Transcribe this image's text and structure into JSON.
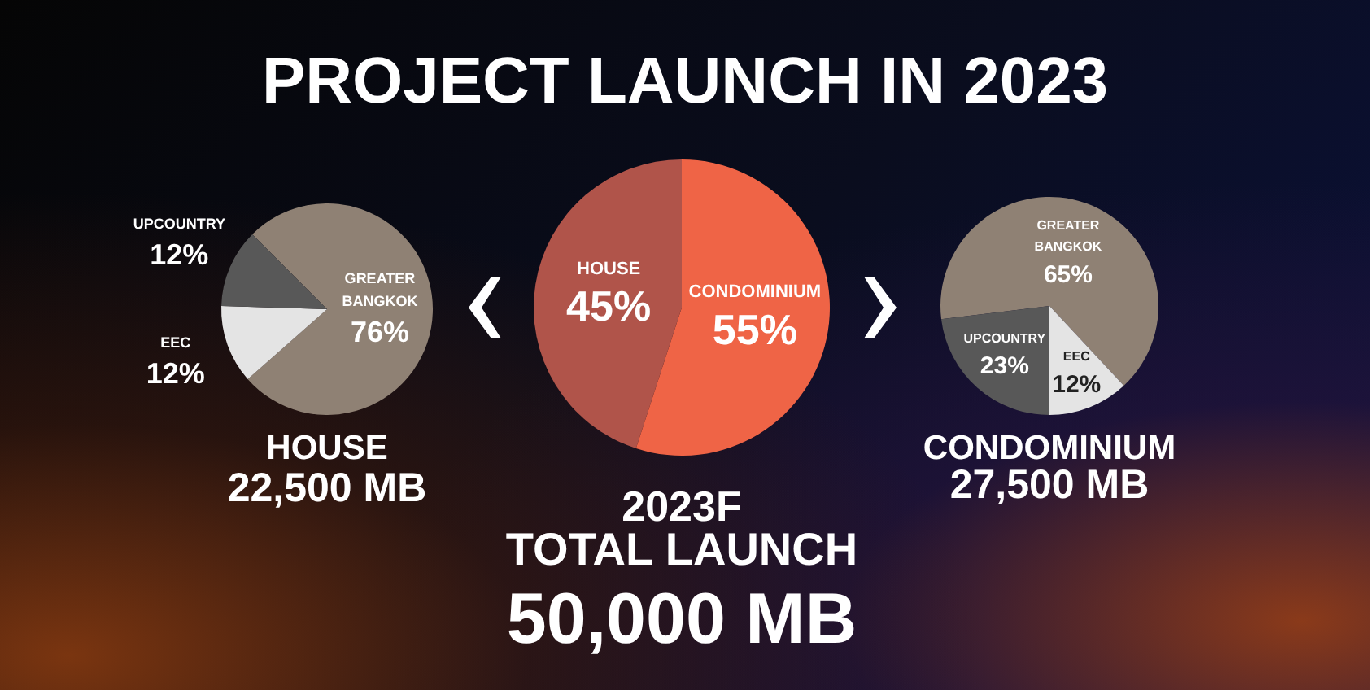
{
  "chart_data": [
    {
      "type": "pie",
      "title": "HOUSE",
      "subtitle": "22,500 MB",
      "categories": [
        "GREATER BANGKOK",
        "EEC",
        "UPCOUNTRY"
      ],
      "values": [
        76,
        12,
        12
      ],
      "colors": [
        "#8f8174",
        "#e4e4e4",
        "#585858"
      ],
      "value_labels": [
        "76%",
        "12%",
        "12%"
      ]
    },
    {
      "type": "pie",
      "title": "PROJECT LAUNCH IN 2023",
      "categories": [
        "HOUSE",
        "CONDOMINIUM"
      ],
      "values": [
        45,
        55
      ],
      "colors": [
        "#b0544a",
        "#ef6446"
      ],
      "value_labels": [
        "45%",
        "55%"
      ],
      "annotations": [
        "2023F",
        "TOTAL LAUNCH",
        "50,000 MB"
      ]
    },
    {
      "type": "pie",
      "title": "CONDOMINIUM",
      "subtitle": "27,500 MB",
      "categories": [
        "GREATER BANGKOK",
        "EEC",
        "UPCOUNTRY"
      ],
      "values": [
        65,
        12,
        23
      ],
      "colors": [
        "#8f8174",
        "#e4e4e4",
        "#585858"
      ],
      "value_labels": [
        "65%",
        "12%",
        "23%"
      ]
    }
  ]
}
